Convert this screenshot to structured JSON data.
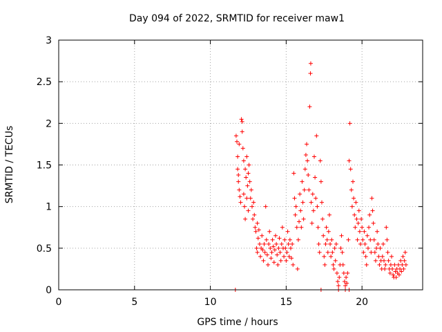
{
  "chart_data": {
    "type": "scatter",
    "title": "Day 094 of 2022, SRMTID for receiver maw1",
    "xlabel": "GPS time / hours",
    "ylabel": "SRMTID / TECUs",
    "xlim": [
      0,
      24
    ],
    "ylim": [
      0,
      3
    ],
    "x_ticks": [
      "0",
      "5",
      "10",
      "15",
      "20"
    ],
    "y_ticks": [
      "0",
      "0.5",
      "1",
      "1.5",
      "2",
      "2.5",
      "3"
    ],
    "grid": true,
    "marker": "+",
    "marker_color": "#ff0000",
    "series": [
      {
        "points": [
          [
            11.7,
            1.85
          ],
          [
            11.75,
            1.78
          ],
          [
            11.8,
            1.6
          ],
          [
            11.8,
            1.45
          ],
          [
            11.85,
            1.38
          ],
          [
            11.85,
            1.3
          ],
          [
            11.9,
            1.2
          ],
          [
            11.9,
            1.75
          ],
          [
            11.95,
            1.12
          ],
          [
            12.0,
            1.05
          ],
          [
            12.05,
            2.05
          ],
          [
            12.1,
            2.02
          ],
          [
            12.1,
            1.9
          ],
          [
            12.15,
            1.7
          ],
          [
            12.2,
            1.55
          ],
          [
            12.2,
            1.15
          ],
          [
            12.25,
            1.0
          ],
          [
            12.3,
            0.85
          ],
          [
            12.3,
            1.45
          ],
          [
            12.35,
            1.35
          ],
          [
            12.4,
            1.1
          ],
          [
            12.4,
            1.6
          ],
          [
            12.45,
            1.25
          ],
          [
            12.5,
            1.4
          ],
          [
            12.5,
            0.95
          ],
          [
            12.55,
            1.5
          ],
          [
            12.6,
            1.3
          ],
          [
            12.65,
            1.1
          ],
          [
            12.7,
            1.2
          ],
          [
            12.75,
            1.0
          ],
          [
            12.8,
            0.85
          ],
          [
            12.85,
            1.05
          ],
          [
            12.9,
            0.9
          ],
          [
            12.95,
            0.75
          ],
          [
            13.0,
            0.7
          ],
          [
            13.05,
            0.5
          ],
          [
            13.1,
            0.45
          ],
          [
            13.1,
            0.8
          ],
          [
            13.15,
            0.62
          ],
          [
            13.2,
            0.72
          ],
          [
            13.25,
            0.55
          ],
          [
            13.3,
            0.4
          ],
          [
            13.35,
            0.5
          ],
          [
            13.4,
            0.65
          ],
          [
            13.45,
            0.48
          ],
          [
            13.5,
            0.35
          ],
          [
            13.55,
            0.55
          ],
          [
            13.6,
            0.45
          ],
          [
            13.65,
            1.0
          ],
          [
            13.7,
            0.6
          ],
          [
            13.75,
            0.42
          ],
          [
            13.8,
            0.3
          ],
          [
            13.85,
            0.55
          ],
          [
            13.9,
            0.7
          ],
          [
            13.95,
            0.5
          ],
          [
            14.0,
            0.38
          ],
          [
            14.05,
            0.45
          ],
          [
            14.1,
            0.6
          ],
          [
            14.15,
            0.52
          ],
          [
            14.2,
            0.33
          ],
          [
            14.25,
            0.48
          ],
          [
            14.3,
            0.65
          ],
          [
            14.35,
            0.55
          ],
          [
            14.4,
            0.42
          ],
          [
            14.45,
            0.3
          ],
          [
            14.5,
            0.5
          ],
          [
            14.55,
            0.62
          ],
          [
            14.6,
            0.45
          ],
          [
            14.65,
            0.35
          ],
          [
            14.7,
            0.55
          ],
          [
            14.75,
            0.75
          ],
          [
            14.8,
            0.5
          ],
          [
            14.85,
            0.4
          ],
          [
            14.9,
            0.6
          ],
          [
            14.95,
            0.5
          ],
          [
            15.0,
            0.35
          ],
          [
            15.05,
            0.45
          ],
          [
            15.1,
            0.7
          ],
          [
            15.15,
            0.55
          ],
          [
            15.2,
            0.4
          ],
          [
            15.25,
            0.6
          ],
          [
            15.3,
            0.5
          ],
          [
            15.35,
            0.38
          ],
          [
            15.4,
            0.55
          ],
          [
            15.45,
            0.3
          ],
          [
            15.5,
            1.4
          ],
          [
            15.55,
            1.1
          ],
          [
            15.6,
            0.9
          ],
          [
            15.65,
            1.0
          ],
          [
            15.7,
            0.75
          ],
          [
            15.75,
            0.25
          ],
          [
            15.8,
            0.6
          ],
          [
            15.85,
            0.82
          ],
          [
            15.9,
            1.15
          ],
          [
            15.95,
            0.95
          ],
          [
            16.0,
            0.75
          ],
          [
            16.05,
            1.3
          ],
          [
            16.1,
            1.05
          ],
          [
            16.15,
            0.85
          ],
          [
            16.2,
            1.2
          ],
          [
            16.25,
            1.45
          ],
          [
            16.3,
            1.62
          ],
          [
            16.35,
            1.75
          ],
          [
            16.4,
            1.55
          ],
          [
            16.45,
            1.38
          ],
          [
            16.5,
            1.2
          ],
          [
            16.55,
            2.2
          ],
          [
            16.6,
            2.6
          ],
          [
            16.62,
            2.72
          ],
          [
            16.65,
            1.05
          ],
          [
            16.7,
            0.8
          ],
          [
            16.75,
            1.15
          ],
          [
            16.8,
            0.95
          ],
          [
            16.85,
            1.6
          ],
          [
            16.9,
            1.35
          ],
          [
            16.95,
            1.1
          ],
          [
            17.0,
            1.85
          ],
          [
            17.05,
            1.0
          ],
          [
            17.1,
            0.75
          ],
          [
            17.15,
            0.55
          ],
          [
            17.2,
            0.45
          ],
          [
            17.25,
            1.55
          ],
          [
            17.3,
            1.3
          ],
          [
            17.35,
            1.05
          ],
          [
            17.4,
            0.85
          ],
          [
            17.45,
            0.65
          ],
          [
            17.5,
            0.4
          ],
          [
            17.55,
            0.3
          ],
          [
            17.6,
            0.55
          ],
          [
            17.65,
            0.75
          ],
          [
            17.7,
            0.6
          ],
          [
            17.75,
            0.45
          ],
          [
            17.8,
            0.7
          ],
          [
            17.85,
            0.9
          ],
          [
            17.9,
            0.55
          ],
          [
            17.95,
            0.4
          ],
          [
            18.0,
            0.6
          ],
          [
            18.05,
            0.45
          ],
          [
            18.1,
            0.3
          ],
          [
            18.15,
            0.25
          ],
          [
            18.2,
            0.5
          ],
          [
            18.25,
            0.35
          ],
          [
            18.3,
            0.55
          ],
          [
            18.35,
            0.2
          ],
          [
            18.4,
            0.1
          ],
          [
            18.45,
            0.05
          ],
          [
            18.5,
            0.15
          ],
          [
            18.55,
            0.3
          ],
          [
            18.6,
            0.5
          ],
          [
            18.65,
            0.65
          ],
          [
            18.7,
            0.45
          ],
          [
            18.75,
            0.3
          ],
          [
            18.8,
            0.2
          ],
          [
            18.85,
            0.1
          ],
          [
            18.9,
            0.05
          ],
          [
            18.95,
            0.15
          ],
          [
            19.0,
            0.08
          ],
          [
            19.05,
            0.2
          ],
          [
            19.1,
            0.6
          ],
          [
            19.15,
            1.55
          ],
          [
            19.2,
            2.0
          ],
          [
            19.25,
            1.45
          ],
          [
            19.3,
            1.2
          ],
          [
            19.35,
            1.0
          ],
          [
            19.4,
            1.3
          ],
          [
            19.45,
            1.1
          ],
          [
            19.5,
            0.9
          ],
          [
            19.55,
            0.75
          ],
          [
            19.6,
            1.05
          ],
          [
            19.65,
            0.85
          ],
          [
            19.7,
            0.6
          ],
          [
            19.75,
            0.8
          ],
          [
            19.8,
            0.95
          ],
          [
            19.85,
            0.7
          ],
          [
            19.9,
            0.55
          ],
          [
            19.95,
            0.85
          ],
          [
            20.0,
            0.75
          ],
          [
            20.05,
            0.6
          ],
          [
            20.1,
            0.45
          ],
          [
            20.15,
            0.7
          ],
          [
            20.2,
            0.55
          ],
          [
            20.25,
            0.4
          ],
          [
            20.3,
            0.3
          ],
          [
            20.35,
            0.65
          ],
          [
            20.4,
            0.5
          ],
          [
            20.45,
            0.75
          ],
          [
            20.5,
            0.9
          ],
          [
            20.55,
            0.6
          ],
          [
            20.6,
            0.45
          ],
          [
            20.65,
            1.1
          ],
          [
            20.7,
            0.95
          ],
          [
            20.75,
            0.8
          ],
          [
            20.8,
            0.6
          ],
          [
            20.85,
            0.45
          ],
          [
            20.9,
            0.35
          ],
          [
            20.95,
            0.5
          ],
          [
            21.0,
            0.7
          ],
          [
            21.05,
            0.55
          ],
          [
            21.1,
            0.4
          ],
          [
            21.15,
            0.3
          ],
          [
            21.2,
            0.5
          ],
          [
            21.25,
            0.35
          ],
          [
            21.3,
            0.25
          ],
          [
            21.35,
            0.4
          ],
          [
            21.4,
            0.55
          ],
          [
            21.45,
            0.35
          ],
          [
            21.5,
            0.25
          ],
          [
            21.55,
            0.3
          ],
          [
            21.6,
            0.75
          ],
          [
            21.65,
            0.6
          ],
          [
            21.7,
            0.45
          ],
          [
            21.75,
            0.35
          ],
          [
            21.8,
            0.25
          ],
          [
            21.85,
            0.2
          ],
          [
            21.9,
            0.3
          ],
          [
            21.95,
            0.4
          ],
          [
            22.0,
            0.25
          ],
          [
            22.05,
            0.18
          ],
          [
            22.1,
            0.15
          ],
          [
            22.15,
            0.3
          ],
          [
            22.2,
            0.22
          ],
          [
            22.25,
            0.15
          ],
          [
            22.3,
            0.25
          ],
          [
            22.35,
            0.2
          ],
          [
            22.4,
            0.3
          ],
          [
            22.45,
            0.18
          ],
          [
            22.5,
            0.25
          ],
          [
            22.55,
            0.35
          ],
          [
            22.6,
            0.22
          ],
          [
            22.65,
            0.3
          ],
          [
            22.7,
            0.4
          ],
          [
            22.75,
            0.25
          ],
          [
            22.8,
            0.35
          ],
          [
            22.85,
            0.45
          ],
          [
            22.9,
            0.3
          ],
          [
            11.65,
            0.0
          ],
          [
            17.3,
            0.0
          ],
          [
            18.45,
            0.0
          ],
          [
            18.9,
            0.0
          ],
          [
            19.15,
            0.0
          ]
        ]
      }
    ]
  }
}
